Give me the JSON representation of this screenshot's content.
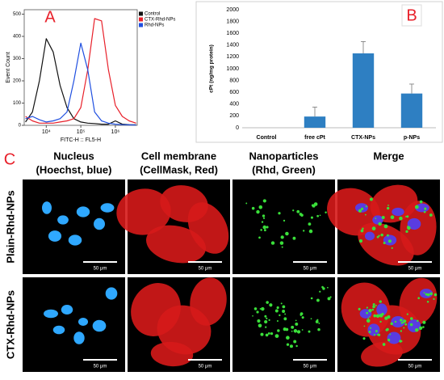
{
  "chart_data": [
    {
      "type": "line",
      "panel_label": "A",
      "x_label": "FITC-H :: FL5-H",
      "y_label": "Event Count",
      "log_x": true,
      "xlim": [
        2300,
        4300000
      ],
      "ylim": [
        0,
        520
      ],
      "xticks": [
        {
          "value": 10000,
          "label": "10⁴"
        },
        {
          "value": 100000,
          "label": "10⁵"
        },
        {
          "value": 1000000,
          "label": "10⁶"
        }
      ],
      "yticks": [
        0,
        100,
        200,
        300,
        400,
        500
      ],
      "legend": "upper right",
      "x": [
        2512,
        3981,
        6310,
        10000,
        15849,
        25119,
        39811,
        63096,
        100000,
        158489,
        251189,
        398107,
        630957,
        1000000,
        1584893,
        2511886,
        3981072
      ],
      "series": [
        {
          "name": "Control",
          "color": "#111111",
          "values": [
            15,
            60,
            200,
            390,
            330,
            180,
            80,
            30,
            15,
            10,
            8,
            5,
            5,
            20,
            5,
            3,
            2
          ]
        },
        {
          "name": "CTX-Rhd-NPs",
          "color": "#e8202a",
          "values": [
            40,
            20,
            10,
            10,
            10,
            15,
            20,
            30,
            80,
            250,
            480,
            470,
            250,
            90,
            40,
            20,
            10
          ]
        },
        {
          "name": "Rhd-NPs",
          "color": "#1f4fe0",
          "values": [
            30,
            40,
            25,
            15,
            20,
            30,
            60,
            200,
            370,
            250,
            60,
            20,
            10,
            5,
            3,
            2,
            1
          ]
        }
      ]
    },
    {
      "type": "bar",
      "panel_label": "B",
      "y_label": "cPt (ng/mg protein)",
      "color": "#2e7fc2",
      "categories": [
        "Control",
        "free cPt",
        "CTX-NPs",
        "p-NPs"
      ],
      "values": [
        0,
        190,
        1260,
        580
      ],
      "errors": [
        0,
        160,
        200,
        160
      ],
      "ylim": [
        0,
        2000
      ],
      "yticks": [
        0,
        200,
        400,
        600,
        800,
        1000,
        1200,
        1400,
        1600,
        1800,
        2000
      ],
      "grid": false
    }
  ],
  "panel_c": {
    "label": "C",
    "columns": [
      [
        "Nucleus",
        "(Hoechst, blue)"
      ],
      [
        "Cell membrane",
        "(CellMask, Red)"
      ],
      [
        "Nanoparticles",
        "(Rhd, Green)"
      ],
      [
        "Merge"
      ]
    ],
    "rows": [
      "Plain-Rhd-NPs",
      "CTX-Rhd-NPs"
    ],
    "scale_bar": "50 μm"
  }
}
